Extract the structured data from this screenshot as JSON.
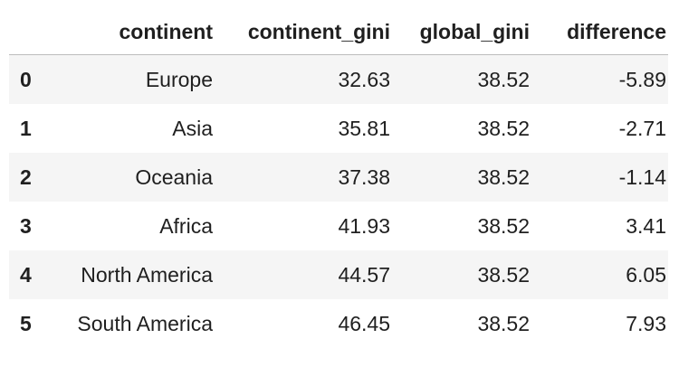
{
  "table": {
    "index_header": "",
    "columns": [
      "continent",
      "continent_gini",
      "global_gini",
      "difference"
    ],
    "rows": [
      {
        "index": "0",
        "continent": "Europe",
        "continent_gini": "32.63",
        "global_gini": "38.52",
        "difference": "-5.89"
      },
      {
        "index": "1",
        "continent": "Asia",
        "continent_gini": "35.81",
        "global_gini": "38.52",
        "difference": "-2.71"
      },
      {
        "index": "2",
        "continent": "Oceania",
        "continent_gini": "37.38",
        "global_gini": "38.52",
        "difference": "-1.14"
      },
      {
        "index": "3",
        "continent": "Africa",
        "continent_gini": "41.93",
        "global_gini": "38.52",
        "difference": "3.41"
      },
      {
        "index": "4",
        "continent": "North America",
        "continent_gini": "44.57",
        "global_gini": "38.52",
        "difference": "6.05"
      },
      {
        "index": "5",
        "continent": "South America",
        "continent_gini": "46.45",
        "global_gini": "38.52",
        "difference": "7.93"
      }
    ]
  }
}
